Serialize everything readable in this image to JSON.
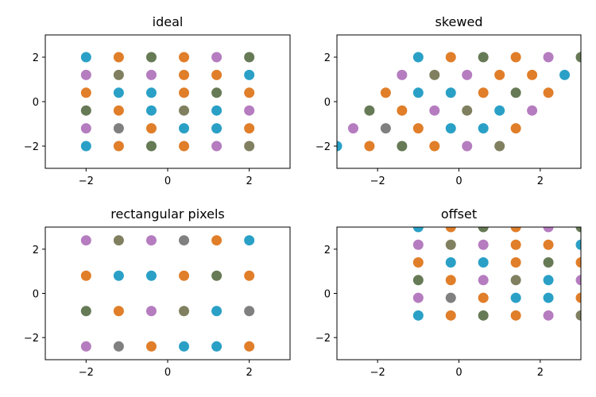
{
  "chart_data": [
    {
      "type": "scatter",
      "title": "ideal",
      "xlim": [
        -3,
        3
      ],
      "ylim": [
        -3,
        3
      ],
      "xticks": [
        -2,
        0,
        2
      ],
      "yticks": [
        -2,
        0,
        2
      ],
      "points": [
        {
          "x": -2.0,
          "y": 2.0,
          "color": "#2aa0c6"
        },
        {
          "x": -1.2,
          "y": 2.0,
          "color": "#e07e2a"
        },
        {
          "x": -0.4,
          "y": 2.0,
          "color": "#667a55"
        },
        {
          "x": 0.4,
          "y": 2.0,
          "color": "#e07e2a"
        },
        {
          "x": 1.2,
          "y": 2.0,
          "color": "#b57cbf"
        },
        {
          "x": 2.0,
          "y": 2.0,
          "color": "#667a55"
        },
        {
          "x": -2.0,
          "y": 1.2,
          "color": "#b57cbf"
        },
        {
          "x": -1.2,
          "y": 1.2,
          "color": "#808060"
        },
        {
          "x": -0.4,
          "y": 1.2,
          "color": "#b57cbf"
        },
        {
          "x": 0.4,
          "y": 1.2,
          "color": "#e07e2a"
        },
        {
          "x": 1.2,
          "y": 1.2,
          "color": "#e07e2a"
        },
        {
          "x": 2.0,
          "y": 1.2,
          "color": "#2aa0c6"
        },
        {
          "x": -2.0,
          "y": 0.4,
          "color": "#e07e2a"
        },
        {
          "x": -1.2,
          "y": 0.4,
          "color": "#2aa0c6"
        },
        {
          "x": -0.4,
          "y": 0.4,
          "color": "#2aa0c6"
        },
        {
          "x": 0.4,
          "y": 0.4,
          "color": "#e07e2a"
        },
        {
          "x": 1.2,
          "y": 0.4,
          "color": "#667a55"
        },
        {
          "x": 2.0,
          "y": 0.4,
          "color": "#e07e2a"
        },
        {
          "x": -2.0,
          "y": -0.4,
          "color": "#667a55"
        },
        {
          "x": -1.2,
          "y": -0.4,
          "color": "#e07e2a"
        },
        {
          "x": -0.4,
          "y": -0.4,
          "color": "#2aa0c6"
        },
        {
          "x": 0.4,
          "y": -0.4,
          "color": "#808060"
        },
        {
          "x": 1.2,
          "y": -0.4,
          "color": "#2aa0c6"
        },
        {
          "x": 2.0,
          "y": -0.4,
          "color": "#b57cbf"
        },
        {
          "x": -2.0,
          "y": -1.2,
          "color": "#b57cbf"
        },
        {
          "x": -1.2,
          "y": -1.2,
          "color": "#808080"
        },
        {
          "x": -0.4,
          "y": -1.2,
          "color": "#e07e2a"
        },
        {
          "x": 0.4,
          "y": -1.2,
          "color": "#2aa0c6"
        },
        {
          "x": 1.2,
          "y": -1.2,
          "color": "#2aa0c6"
        },
        {
          "x": 2.0,
          "y": -1.2,
          "color": "#e07e2a"
        },
        {
          "x": -2.0,
          "y": -2.0,
          "color": "#2aa0c6"
        },
        {
          "x": -1.2,
          "y": -2.0,
          "color": "#e07e2a"
        },
        {
          "x": -0.4,
          "y": -2.0,
          "color": "#667a55"
        },
        {
          "x": 0.4,
          "y": -2.0,
          "color": "#e07e2a"
        },
        {
          "x": 1.2,
          "y": -2.0,
          "color": "#b57cbf"
        },
        {
          "x": 2.0,
          "y": -2.0,
          "color": "#808060"
        }
      ]
    },
    {
      "type": "scatter",
      "title": "skewed",
      "xlim": [
        -3,
        3
      ],
      "ylim": [
        -3,
        3
      ],
      "xticks": [
        -2,
        0,
        2
      ],
      "yticks": [
        -2,
        0,
        2
      ],
      "points": [
        {
          "x": -1.0,
          "y": 2.0,
          "color": "#2aa0c6"
        },
        {
          "x": -0.2,
          "y": 2.0,
          "color": "#e07e2a"
        },
        {
          "x": 0.6,
          "y": 2.0,
          "color": "#667a55"
        },
        {
          "x": 1.4,
          "y": 2.0,
          "color": "#e07e2a"
        },
        {
          "x": 2.2,
          "y": 2.0,
          "color": "#b57cbf"
        },
        {
          "x": 3.0,
          "y": 2.0,
          "color": "#667a55"
        },
        {
          "x": -1.4,
          "y": 1.2,
          "color": "#b57cbf"
        },
        {
          "x": -0.6,
          "y": 1.2,
          "color": "#808060"
        },
        {
          "x": 0.2,
          "y": 1.2,
          "color": "#b57cbf"
        },
        {
          "x": 1.0,
          "y": 1.2,
          "color": "#e07e2a"
        },
        {
          "x": 1.8,
          "y": 1.2,
          "color": "#e07e2a"
        },
        {
          "x": 2.6,
          "y": 1.2,
          "color": "#2aa0c6"
        },
        {
          "x": -1.8,
          "y": 0.4,
          "color": "#e07e2a"
        },
        {
          "x": -1.0,
          "y": 0.4,
          "color": "#2aa0c6"
        },
        {
          "x": -0.2,
          "y": 0.4,
          "color": "#2aa0c6"
        },
        {
          "x": 0.6,
          "y": 0.4,
          "color": "#e07e2a"
        },
        {
          "x": 1.4,
          "y": 0.4,
          "color": "#667a55"
        },
        {
          "x": 2.2,
          "y": 0.4,
          "color": "#e07e2a"
        },
        {
          "x": -2.2,
          "y": -0.4,
          "color": "#667a55"
        },
        {
          "x": -1.4,
          "y": -0.4,
          "color": "#e07e2a"
        },
        {
          "x": -0.6,
          "y": -0.4,
          "color": "#b57cbf"
        },
        {
          "x": 0.2,
          "y": -0.4,
          "color": "#808060"
        },
        {
          "x": 1.0,
          "y": -0.4,
          "color": "#2aa0c6"
        },
        {
          "x": 1.8,
          "y": -0.4,
          "color": "#b57cbf"
        },
        {
          "x": -2.6,
          "y": -1.2,
          "color": "#b57cbf"
        },
        {
          "x": -1.8,
          "y": -1.2,
          "color": "#808080"
        },
        {
          "x": -1.0,
          "y": -1.2,
          "color": "#e07e2a"
        },
        {
          "x": -0.2,
          "y": -1.2,
          "color": "#2aa0c6"
        },
        {
          "x": 0.6,
          "y": -1.2,
          "color": "#2aa0c6"
        },
        {
          "x": 1.4,
          "y": -1.2,
          "color": "#e07e2a"
        },
        {
          "x": -3.0,
          "y": -2.0,
          "color": "#2aa0c6"
        },
        {
          "x": -2.2,
          "y": -2.0,
          "color": "#e07e2a"
        },
        {
          "x": -1.4,
          "y": -2.0,
          "color": "#667a55"
        },
        {
          "x": -0.6,
          "y": -2.0,
          "color": "#e07e2a"
        },
        {
          "x": 0.2,
          "y": -2.0,
          "color": "#b57cbf"
        },
        {
          "x": 1.0,
          "y": -2.0,
          "color": "#808060"
        }
      ]
    },
    {
      "type": "scatter",
      "title": "rectangular pixels",
      "xlim": [
        -3,
        3
      ],
      "ylim": [
        -3,
        3
      ],
      "xticks": [
        -2,
        0,
        2
      ],
      "yticks": [
        -2,
        0,
        2
      ],
      "points": [
        {
          "x": -2.0,
          "y": 2.4,
          "color": "#b57cbf"
        },
        {
          "x": -1.2,
          "y": 2.4,
          "color": "#808060"
        },
        {
          "x": -0.4,
          "y": 2.4,
          "color": "#b57cbf"
        },
        {
          "x": 0.4,
          "y": 2.4,
          "color": "#808080"
        },
        {
          "x": 1.2,
          "y": 2.4,
          "color": "#e07e2a"
        },
        {
          "x": 2.0,
          "y": 2.4,
          "color": "#2aa0c6"
        },
        {
          "x": -2.0,
          "y": 0.8,
          "color": "#e07e2a"
        },
        {
          "x": -1.2,
          "y": 0.8,
          "color": "#2aa0c6"
        },
        {
          "x": -0.4,
          "y": 0.8,
          "color": "#2aa0c6"
        },
        {
          "x": 0.4,
          "y": 0.8,
          "color": "#e07e2a"
        },
        {
          "x": 1.2,
          "y": 0.8,
          "color": "#667a55"
        },
        {
          "x": 2.0,
          "y": 0.8,
          "color": "#e07e2a"
        },
        {
          "x": -2.0,
          "y": -0.8,
          "color": "#667a55"
        },
        {
          "x": -1.2,
          "y": -0.8,
          "color": "#e07e2a"
        },
        {
          "x": -0.4,
          "y": -0.8,
          "color": "#b57cbf"
        },
        {
          "x": 0.4,
          "y": -0.8,
          "color": "#808060"
        },
        {
          "x": 1.2,
          "y": -0.8,
          "color": "#2aa0c6"
        },
        {
          "x": 2.0,
          "y": -0.8,
          "color": "#808080"
        },
        {
          "x": -2.0,
          "y": -2.4,
          "color": "#b57cbf"
        },
        {
          "x": -1.2,
          "y": -2.4,
          "color": "#808080"
        },
        {
          "x": -0.4,
          "y": -2.4,
          "color": "#e07e2a"
        },
        {
          "x": 0.4,
          "y": -2.4,
          "color": "#2aa0c6"
        },
        {
          "x": 1.2,
          "y": -2.4,
          "color": "#2aa0c6"
        },
        {
          "x": 2.0,
          "y": -2.4,
          "color": "#e07e2a"
        }
      ]
    },
    {
      "type": "scatter",
      "title": "offset",
      "xlim": [
        -3,
        3
      ],
      "ylim": [
        -3,
        3
      ],
      "xticks": [
        -2,
        0,
        2
      ],
      "yticks": [
        -2,
        0,
        2
      ],
      "points": [
        {
          "x": -1.0,
          "y": 3.0,
          "color": "#2aa0c6"
        },
        {
          "x": -0.2,
          "y": 3.0,
          "color": "#e07e2a"
        },
        {
          "x": 0.6,
          "y": 3.0,
          "color": "#667a55"
        },
        {
          "x": 1.4,
          "y": 3.0,
          "color": "#e07e2a"
        },
        {
          "x": 2.2,
          "y": 3.0,
          "color": "#b57cbf"
        },
        {
          "x": 3.0,
          "y": 3.0,
          "color": "#667a55"
        },
        {
          "x": -1.0,
          "y": 2.2,
          "color": "#b57cbf"
        },
        {
          "x": -0.2,
          "y": 2.2,
          "color": "#808060"
        },
        {
          "x": 0.6,
          "y": 2.2,
          "color": "#b57cbf"
        },
        {
          "x": 1.4,
          "y": 2.2,
          "color": "#e07e2a"
        },
        {
          "x": 2.2,
          "y": 2.2,
          "color": "#e07e2a"
        },
        {
          "x": 3.0,
          "y": 2.2,
          "color": "#2aa0c6"
        },
        {
          "x": -1.0,
          "y": 1.4,
          "color": "#e07e2a"
        },
        {
          "x": -0.2,
          "y": 1.4,
          "color": "#2aa0c6"
        },
        {
          "x": 0.6,
          "y": 1.4,
          "color": "#2aa0c6"
        },
        {
          "x": 1.4,
          "y": 1.4,
          "color": "#e07e2a"
        },
        {
          "x": 2.2,
          "y": 1.4,
          "color": "#667a55"
        },
        {
          "x": 3.0,
          "y": 1.4,
          "color": "#e07e2a"
        },
        {
          "x": -1.0,
          "y": 0.6,
          "color": "#667a55"
        },
        {
          "x": -0.2,
          "y": 0.6,
          "color": "#e07e2a"
        },
        {
          "x": 0.6,
          "y": 0.6,
          "color": "#b57cbf"
        },
        {
          "x": 1.4,
          "y": 0.6,
          "color": "#808060"
        },
        {
          "x": 2.2,
          "y": 0.6,
          "color": "#2aa0c6"
        },
        {
          "x": 3.0,
          "y": 0.6,
          "color": "#b57cbf"
        },
        {
          "x": -1.0,
          "y": -0.2,
          "color": "#b57cbf"
        },
        {
          "x": -0.2,
          "y": -0.2,
          "color": "#808080"
        },
        {
          "x": 0.6,
          "y": -0.2,
          "color": "#e07e2a"
        },
        {
          "x": 1.4,
          "y": -0.2,
          "color": "#2aa0c6"
        },
        {
          "x": 2.2,
          "y": -0.2,
          "color": "#2aa0c6"
        },
        {
          "x": 3.0,
          "y": -0.2,
          "color": "#e07e2a"
        },
        {
          "x": -1.0,
          "y": -1.0,
          "color": "#2aa0c6"
        },
        {
          "x": -0.2,
          "y": -1.0,
          "color": "#e07e2a"
        },
        {
          "x": 0.6,
          "y": -1.0,
          "color": "#667a55"
        },
        {
          "x": 1.4,
          "y": -1.0,
          "color": "#e07e2a"
        },
        {
          "x": 2.2,
          "y": -1.0,
          "color": "#b57cbf"
        },
        {
          "x": 3.0,
          "y": -1.0,
          "color": "#808060"
        }
      ]
    }
  ]
}
